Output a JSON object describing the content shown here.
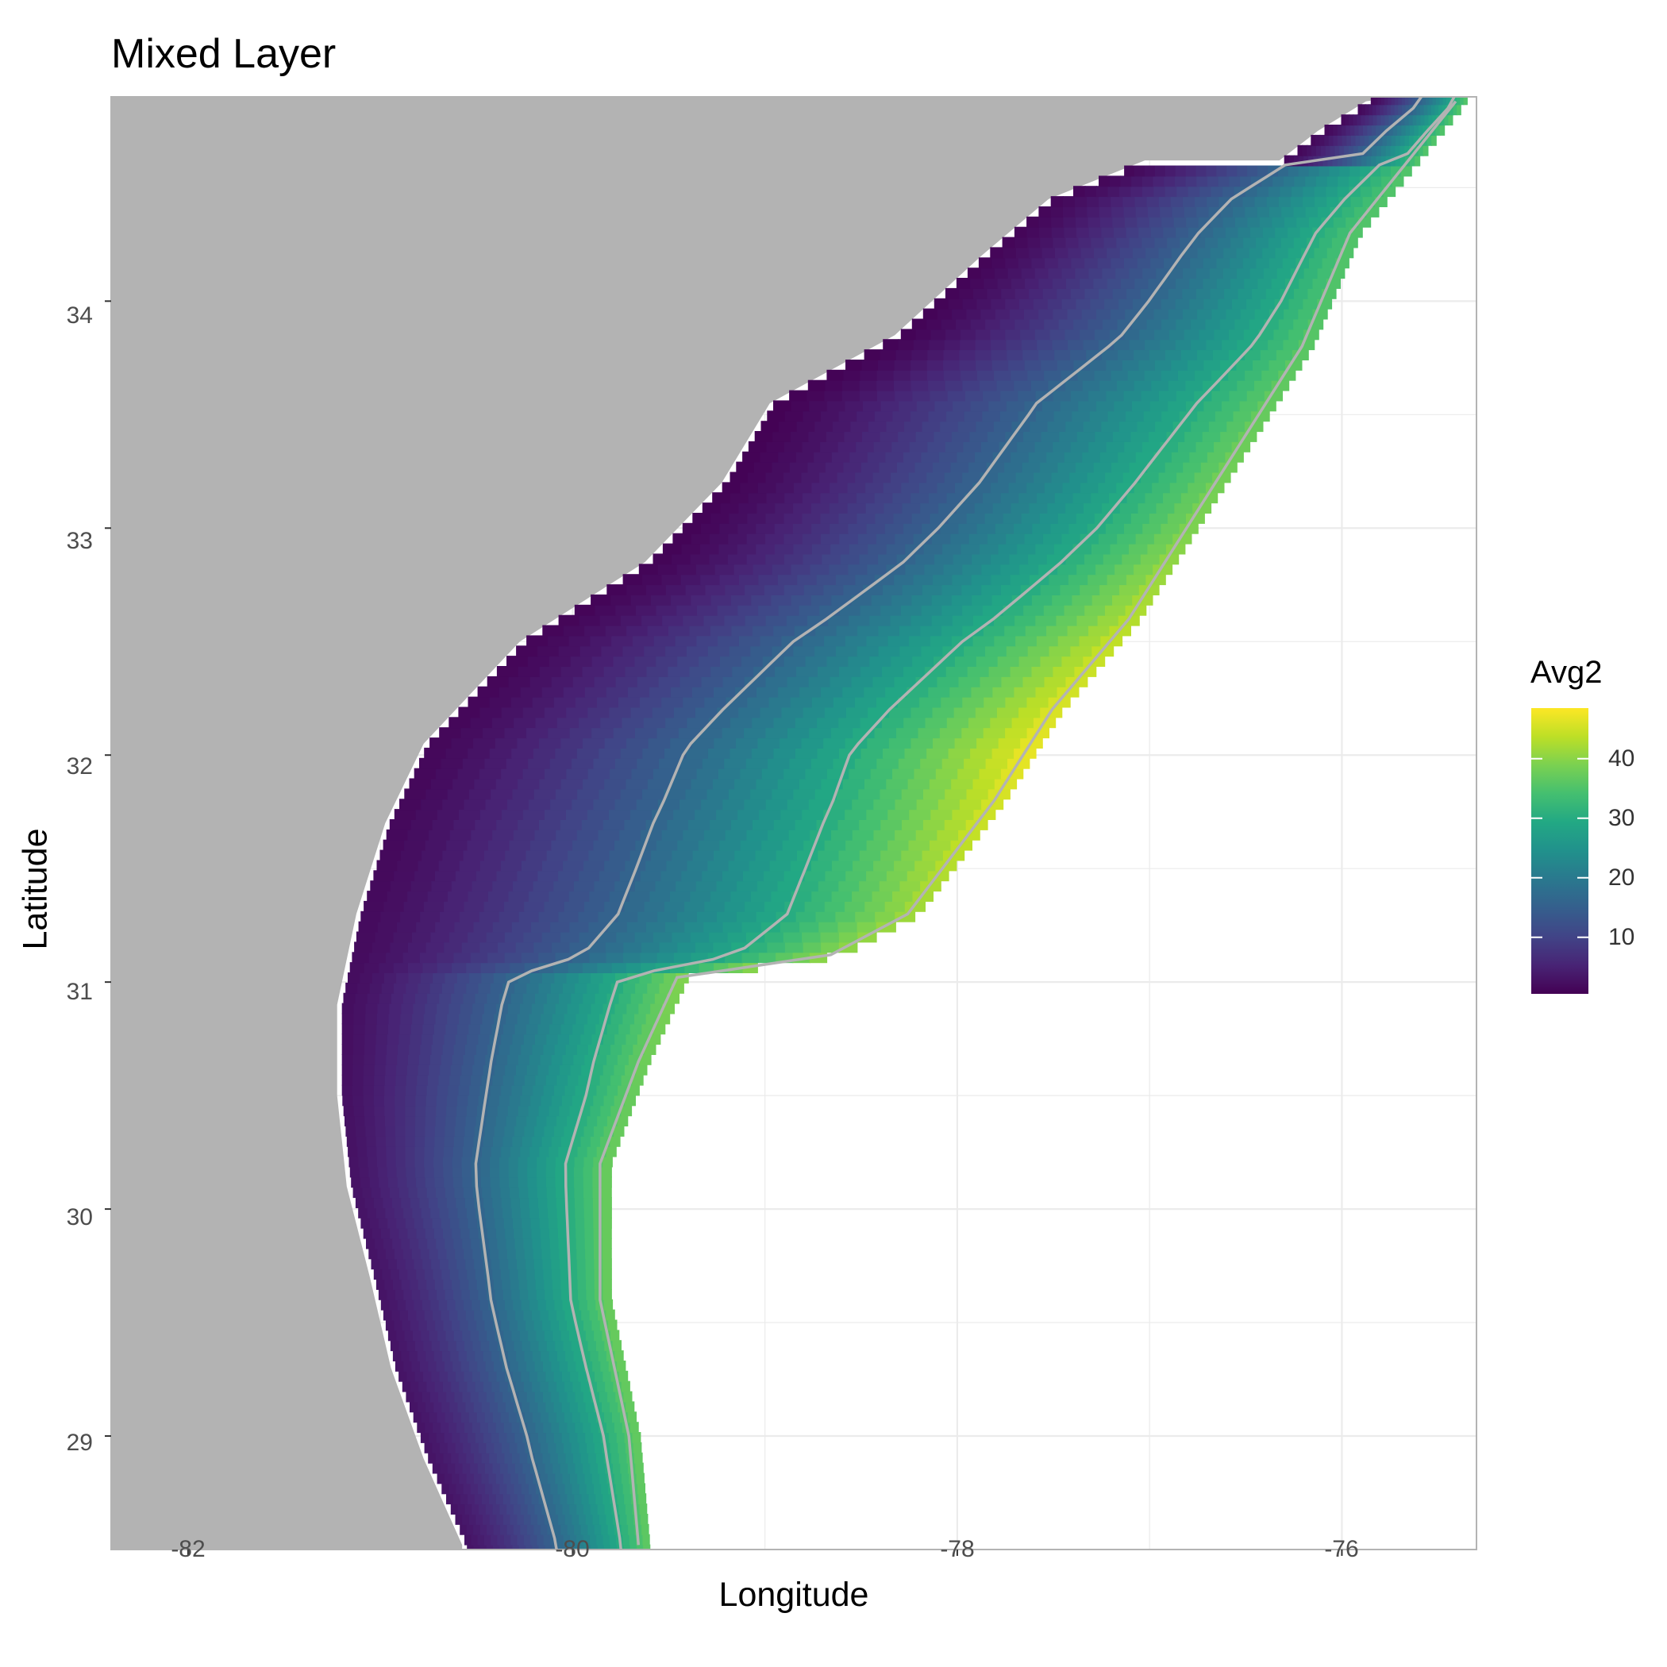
{
  "chart_data": {
    "type": "heatmap",
    "title": "Mixed Layer",
    "xlabel": "Longitude",
    "ylabel": "Latitude",
    "xlim": [
      -82.4,
      -75.3
    ],
    "ylim": [
      28.5,
      34.9
    ],
    "x_ticks": [
      "-82",
      "-80",
      "-78",
      "-76"
    ],
    "x_tick_values": [
      -82,
      -80,
      -78,
      -76
    ],
    "y_ticks": [
      "29",
      "30",
      "31",
      "32",
      "33",
      "34"
    ],
    "y_tick_values": [
      29,
      30,
      31,
      32,
      33,
      34
    ],
    "grid": true,
    "legend": {
      "title": "Avg2",
      "position": "right",
      "range": [
        0.5,
        48.5
      ],
      "breaks": [
        "10",
        "20",
        "30",
        "40"
      ],
      "break_values": [
        10,
        20,
        30,
        40
      ],
      "colormap": "viridis"
    },
    "colors": {
      "land": "#b3b3b3",
      "contour": "#b3b3b3",
      "grid": "#ebebeb",
      "panel_border": "#b3b3b3",
      "low": "#440154",
      "high": "#fde725"
    },
    "shelf_field": {
      "coast_edge_lon": [
        [
          28.52,
          -80.55
        ],
        [
          28.9,
          -80.75
        ],
        [
          29.3,
          -80.92
        ],
        [
          29.7,
          -81.03
        ],
        [
          30.1,
          -81.15
        ],
        [
          30.5,
          -81.2
        ],
        [
          30.9,
          -81.2
        ],
        [
          31.3,
          -81.1
        ],
        [
          31.7,
          -80.95
        ],
        [
          32.05,
          -80.75
        ],
        [
          32.5,
          -80.25
        ],
        [
          32.85,
          -79.6
        ],
        [
          33.2,
          -79.2
        ],
        [
          33.55,
          -78.95
        ],
        [
          33.85,
          -78.3
        ],
        [
          34.2,
          -77.85
        ],
        [
          34.45,
          -77.5
        ],
        [
          34.62,
          -77.0
        ],
        [
          34.62,
          -76.3
        ],
        [
          34.75,
          -76.1
        ],
        [
          34.88,
          -75.85
        ]
      ],
      "outer_edge_lon": [
        [
          28.52,
          -79.6
        ],
        [
          29.0,
          -79.65
        ],
        [
          29.6,
          -79.8
        ],
        [
          30.2,
          -79.8
        ],
        [
          30.65,
          -79.6
        ],
        [
          31.02,
          -79.4
        ],
        [
          31.12,
          -78.6
        ],
        [
          31.3,
          -78.2
        ],
        [
          31.8,
          -77.75
        ],
        [
          32.2,
          -77.45
        ],
        [
          32.6,
          -77.05
        ],
        [
          33.0,
          -76.75
        ],
        [
          33.4,
          -76.45
        ],
        [
          33.8,
          -76.15
        ],
        [
          34.3,
          -75.9
        ],
        [
          34.88,
          -75.35
        ]
      ],
      "avg2_at_coast": [
        [
          28.5,
          3
        ],
        [
          30.0,
          3
        ],
        [
          31.5,
          1.5
        ],
        [
          32.5,
          1
        ],
        [
          33.5,
          0.5
        ],
        [
          34.88,
          1.5
        ]
      ],
      "avg2_at_shelf_break": [
        [
          28.5,
          37
        ],
        [
          29.5,
          38
        ],
        [
          30.5,
          38
        ],
        [
          31.0,
          40
        ],
        [
          31.5,
          44
        ],
        [
          32.0,
          48
        ],
        [
          32.5,
          45
        ],
        [
          33.0,
          40
        ],
        [
          34.0,
          36
        ],
        [
          34.88,
          36
        ]
      ],
      "isolines_avg2": [
        16,
        30
      ]
    }
  }
}
